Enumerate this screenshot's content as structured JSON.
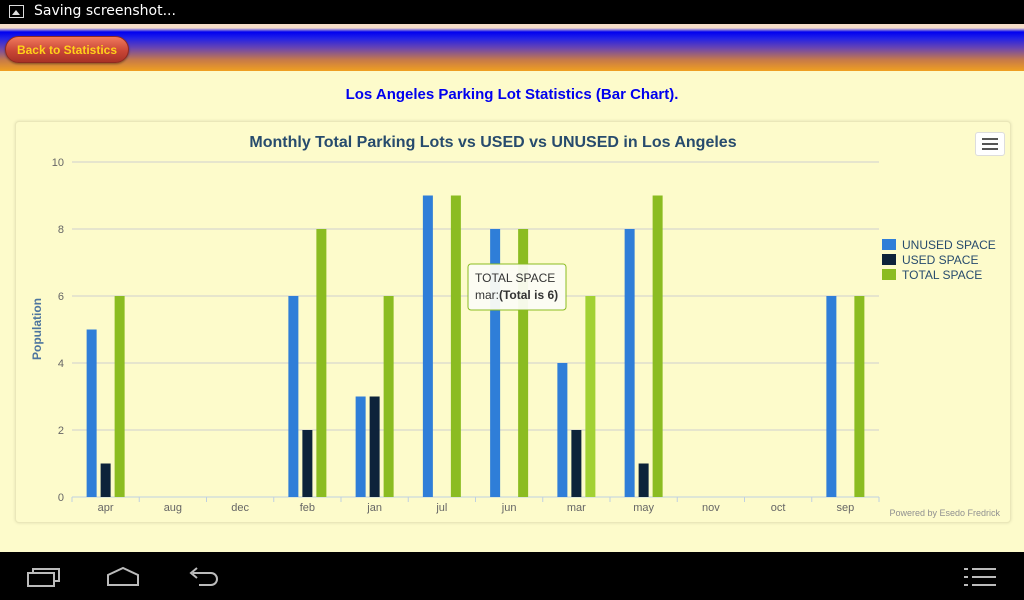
{
  "status_bar": {
    "notification_text": "Saving screenshot..."
  },
  "header": {
    "back_button_label": "Back to Statistics"
  },
  "page": {
    "heading": "Los Angeles Parking Lot Statistics (Bar Chart)."
  },
  "chart_data": {
    "type": "bar",
    "title": "Monthly Total Parking Lots vs USED vs UNUSED in Los Angeles",
    "xlabel": "",
    "ylabel": "Population",
    "ylim": [
      0,
      10
    ],
    "yticks": [
      0,
      2,
      4,
      6,
      8,
      10
    ],
    "grid": true,
    "legend_position": "right",
    "categories": [
      "apr",
      "aug",
      "dec",
      "feb",
      "jan",
      "jul",
      "jun",
      "mar",
      "may",
      "nov",
      "oct",
      "sep"
    ],
    "series": [
      {
        "name": "UNUSED SPACE",
        "color": "#2f7ed8",
        "values": [
          5,
          0,
          0,
          6,
          3,
          9,
          8,
          4,
          8,
          0,
          0,
          6
        ]
      },
      {
        "name": "USED SPACE",
        "color": "#0d233a",
        "values": [
          1,
          0,
          0,
          2,
          3,
          0,
          0,
          2,
          1,
          0,
          0,
          0
        ]
      },
      {
        "name": "TOTAL SPACE",
        "color": "#8bbc21",
        "values": [
          6,
          0,
          0,
          8,
          6,
          9,
          8,
          6,
          9,
          0,
          0,
          6
        ]
      }
    ],
    "tooltip": {
      "series": "TOTAL SPACE",
      "prefix": "mar:",
      "value_text": "(Total is 6)"
    },
    "credits": "Powered by Esedo Fredrick"
  },
  "icons": {
    "status": "image-icon",
    "chart_menu": "hamburger-menu-icon",
    "nav": [
      "recent-apps-icon",
      "home-icon",
      "back-icon",
      "menu-icon"
    ]
  }
}
